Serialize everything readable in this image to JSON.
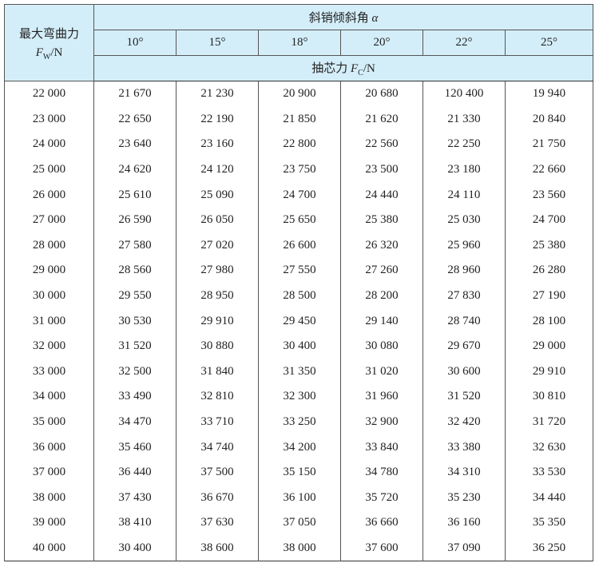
{
  "header": {
    "row_label_line1": "最大弯曲力",
    "row_label_symbol": "F",
    "row_label_sub": "W",
    "row_label_unit": "/N",
    "angle_group_label": "斜销倾斜角",
    "angle_symbol": "α",
    "angles": [
      "10°",
      "15°",
      "18°",
      "20°",
      "22°",
      "25°"
    ],
    "result_label": "抽芯力",
    "result_symbol": "F",
    "result_sub": "C",
    "result_unit": "/N"
  },
  "chart_data": {
    "type": "table",
    "columns": [
      "最大弯曲力 FW/N",
      "10°",
      "15°",
      "18°",
      "20°",
      "22°",
      "25°"
    ],
    "rows": [
      [
        "22 000",
        "21 670",
        "21 230",
        "20 900",
        "20 680",
        "120 400",
        "19 940"
      ],
      [
        "23 000",
        "22 650",
        "22 190",
        "21 850",
        "21 620",
        "21 330",
        "20 840"
      ],
      [
        "24 000",
        "23 640",
        "23 160",
        "22 800",
        "22 560",
        "22 250",
        "21 750"
      ],
      [
        "25 000",
        "24 620",
        "24 120",
        "23 750",
        "23 500",
        "23 180",
        "22 660"
      ],
      [
        "26 000",
        "25 610",
        "25 090",
        "24 700",
        "24 440",
        "24 110",
        "23 560"
      ],
      [
        "27 000",
        "26 590",
        "26 050",
        "25 650",
        "25 380",
        "25 030",
        "24 700"
      ],
      [
        "28 000",
        "27 580",
        "27 020",
        "26 600",
        "26 320",
        "25 960",
        "25 380"
      ],
      [
        "29 000",
        "28 560",
        "27 980",
        "27 550",
        "27 260",
        "28 960",
        "26 280"
      ],
      [
        "30 000",
        "29 550",
        "28 950",
        "28 500",
        "28 200",
        "27 830",
        "27 190"
      ],
      [
        "31 000",
        "30 530",
        "29 910",
        "29 450",
        "29 140",
        "28 740",
        "28 100"
      ],
      [
        "32 000",
        "31 520",
        "30 880",
        "30 400",
        "30 080",
        "29 670",
        "29 000"
      ],
      [
        "33 000",
        "32 500",
        "31 840",
        "31 350",
        "31 020",
        "30 600",
        "29 910"
      ],
      [
        "34 000",
        "33 490",
        "32 810",
        "32 300",
        "31 960",
        "31 520",
        "30 810"
      ],
      [
        "35 000",
        "34 470",
        "33 710",
        "33 250",
        "32 900",
        "32 420",
        "31 720"
      ],
      [
        "36 000",
        "35 460",
        "34 740",
        "34 200",
        "33 840",
        "33 380",
        "32 630"
      ],
      [
        "37 000",
        "36 440",
        "37 500",
        "35 150",
        "34 780",
        "34 310",
        "33 530"
      ],
      [
        "38 000",
        "37 430",
        "36 670",
        "36 100",
        "35 720",
        "35 230",
        "34 440"
      ],
      [
        "39 000",
        "38 410",
        "37 630",
        "37 050",
        "36 660",
        "36 160",
        "35 350"
      ],
      [
        "40 000",
        "30 400",
        "38 600",
        "38 000",
        "37 600",
        "37 090",
        "36 250"
      ]
    ]
  },
  "colors": {
    "header_bg": "#d4eef9",
    "border": "#333333"
  }
}
